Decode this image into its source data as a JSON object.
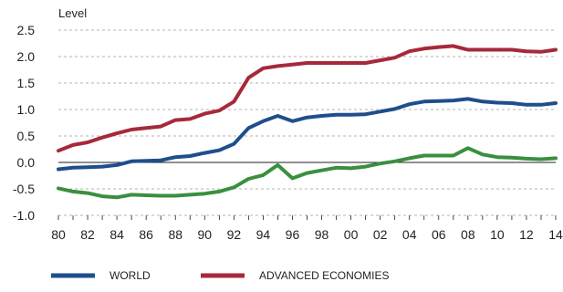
{
  "chart_data": {
    "type": "line",
    "title": "",
    "ylabel": "Level",
    "xlabel": "",
    "x": [
      "80",
      "81",
      "82",
      "83",
      "84",
      "85",
      "86",
      "87",
      "88",
      "89",
      "90",
      "91",
      "92",
      "93",
      "94",
      "95",
      "96",
      "97",
      "98",
      "99",
      "00",
      "01",
      "02",
      "03",
      "04",
      "05",
      "06",
      "07",
      "08",
      "09",
      "10",
      "11",
      "12",
      "13",
      "14"
    ],
    "x_tick_labels": [
      "80",
      "82",
      "84",
      "86",
      "88",
      "90",
      "92",
      "94",
      "96",
      "98",
      "00",
      "02",
      "04",
      "06",
      "08",
      "10",
      "12",
      "14"
    ],
    "ylim": [
      -1.0,
      2.5
    ],
    "y_ticks": [
      "2.5",
      "2.0",
      "1.5",
      "1.0",
      "0.5",
      "0.0",
      "-0.5",
      "-1.0"
    ],
    "grid": "horizontal dashed",
    "legend_position": "bottom",
    "series": [
      {
        "name": "WORLD",
        "color": "#1f4e8c",
        "values": [
          -0.13,
          -0.1,
          -0.09,
          -0.08,
          -0.05,
          0.02,
          0.03,
          0.04,
          0.1,
          0.12,
          0.18,
          0.23,
          0.35,
          0.65,
          0.78,
          0.88,
          0.78,
          0.85,
          0.88,
          0.9,
          0.9,
          0.91,
          0.96,
          1.01,
          1.1,
          1.15,
          1.16,
          1.17,
          1.2,
          1.15,
          1.13,
          1.12,
          1.09,
          1.09,
          1.12
        ]
      },
      {
        "name": "ADVANCED ECONOMIES",
        "color": "#a6293a",
        "values": [
          0.22,
          0.33,
          0.38,
          0.47,
          0.55,
          0.62,
          0.65,
          0.68,
          0.8,
          0.82,
          0.92,
          0.98,
          1.15,
          1.6,
          1.78,
          1.82,
          1.85,
          1.88,
          1.88,
          1.88,
          1.88,
          1.88,
          1.93,
          1.98,
          2.1,
          2.15,
          2.18,
          2.2,
          2.13,
          2.13,
          2.13,
          2.13,
          2.1,
          2.09,
          2.13
        ]
      },
      {
        "name": "",
        "color": "#3a8f3f",
        "values": [
          -0.49,
          -0.55,
          -0.58,
          -0.64,
          -0.66,
          -0.61,
          -0.62,
          -0.63,
          -0.63,
          -0.61,
          -0.59,
          -0.55,
          -0.47,
          -0.31,
          -0.24,
          -0.05,
          -0.3,
          -0.2,
          -0.15,
          -0.1,
          -0.11,
          -0.08,
          -0.02,
          0.02,
          0.08,
          0.13,
          0.13,
          0.13,
          0.27,
          0.15,
          0.1,
          0.09,
          0.07,
          0.06,
          0.08
        ]
      }
    ]
  }
}
